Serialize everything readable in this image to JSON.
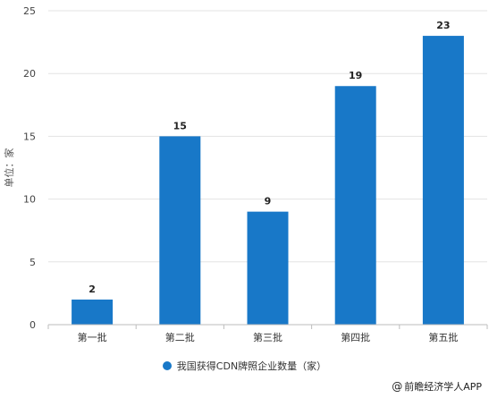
{
  "chart_data": {
    "type": "bar",
    "categories": [
      "第一批",
      "第二批",
      "第三批",
      "第四批",
      "第五批"
    ],
    "series": [
      {
        "name": "我国获得CDN牌照企业数量（家）",
        "values": [
          2,
          15,
          9,
          19,
          23
        ]
      }
    ],
    "title": "",
    "xlabel": "",
    "ylabel": "单位：家",
    "ylim": [
      0,
      25
    ],
    "yticks": [
      0,
      5,
      10,
      15,
      20,
      25
    ],
    "grid": "horizontal",
    "legend": "bottom",
    "bar_color": "#1878C8",
    "data_labels": true
  },
  "credit": {
    "icon": "at-icon",
    "symbol": "@",
    "text": "前瞻经济学人APP"
  }
}
